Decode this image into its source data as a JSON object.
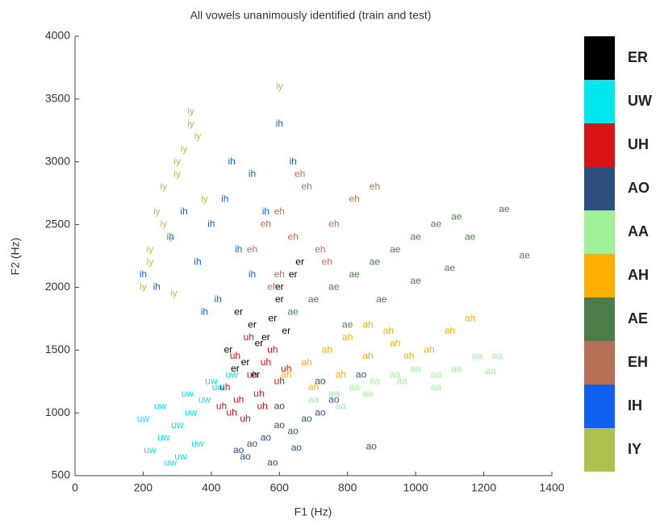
{
  "chart_data": {
    "type": "scatter",
    "title": "All vowels unanimously identified (train and test)",
    "x_label": "F1 (Hz)",
    "y_label": "F2 (Hz)",
    "xlim": [
      0,
      1400
    ],
    "ylim": [
      500,
      4000
    ],
    "xticks": [
      0,
      200,
      400,
      600,
      800,
      1000,
      1200,
      1400
    ],
    "yticks": [
      500,
      1000,
      1500,
      2000,
      2500,
      3000,
      3500,
      4000
    ],
    "legend": "right",
    "series": [
      {
        "name": "ER",
        "marker": "er",
        "color": "#000000",
        "x": [
          480,
          520,
          560,
          600,
          640,
          450,
          500,
          540,
          580,
          620,
          470,
          530,
          600,
          660
        ],
        "y": [
          1800,
          1700,
          1600,
          1900,
          2100,
          1500,
          1400,
          1550,
          1750,
          1650,
          1350,
          1300,
          2000,
          2200
        ]
      },
      {
        "name": "UW",
        "marker": "uw",
        "color": "#00e8ee",
        "x": [
          220,
          260,
          300,
          340,
          380,
          420,
          250,
          310,
          360,
          200,
          280,
          330,
          400,
          460
        ],
        "y": [
          700,
          800,
          900,
          1000,
          1100,
          1200,
          1050,
          650,
          750,
          950,
          600,
          1150,
          1250,
          1300
        ]
      },
      {
        "name": "UH",
        "marker": "uh",
        "color": "#d81414",
        "x": [
          440,
          480,
          520,
          560,
          600,
          460,
          500,
          540,
          580,
          430,
          620,
          510,
          470,
          550
        ],
        "y": [
          1200,
          1100,
          1300,
          1400,
          1250,
          1000,
          950,
          1150,
          1500,
          1050,
          1350,
          1600,
          1450,
          1050
        ]
      },
      {
        "name": "AO",
        "marker": "ao",
        "color": "#2e4e80",
        "x": [
          480,
          520,
          560,
          600,
          640,
          680,
          720,
          760,
          500,
          580,
          650,
          720,
          840,
          600,
          870
        ],
        "y": [
          700,
          750,
          800,
          900,
          850,
          950,
          1000,
          1100,
          650,
          600,
          720,
          1250,
          1300,
          1050,
          730
        ]
      },
      {
        "name": "AA",
        "marker": "aa",
        "color": "#a0f098",
        "x": [
          700,
          760,
          820,
          880,
          940,
          1000,
          1060,
          1120,
          1180,
          1240,
          780,
          860,
          960,
          1060,
          1220
        ],
        "y": [
          1100,
          1150,
          1200,
          1250,
          1300,
          1350,
          1300,
          1350,
          1450,
          1450,
          1050,
          1150,
          1250,
          1200,
          1330
        ]
      },
      {
        "name": "AH",
        "marker": "ah",
        "color": "#ffae00",
        "x": [
          620,
          680,
          740,
          800,
          860,
          920,
          980,
          1040,
          1100,
          1160,
          700,
          780,
          860,
          940
        ],
        "y": [
          1300,
          1400,
          1500,
          1600,
          1700,
          1650,
          1450,
          1500,
          1650,
          1750,
          1200,
          1300,
          1450,
          1550
        ]
      },
      {
        "name": "AE",
        "marker": "ae",
        "color": "#4c7c48",
        "x": [
          640,
          700,
          760,
          820,
          880,
          940,
          1000,
          1060,
          1120,
          1160,
          1260,
          1320,
          800,
          900,
          1000,
          1100
        ],
        "y": [
          1800,
          1900,
          2000,
          2100,
          2200,
          2300,
          2400,
          2500,
          2560,
          2400,
          2620,
          2250,
          1700,
          1900,
          2050,
          2150
        ]
      },
      {
        "name": "EH",
        "marker": "eh",
        "color": "#b87058",
        "x": [
          520,
          560,
          600,
          640,
          680,
          720,
          760,
          820,
          880,
          600,
          660,
          740,
          580
        ],
        "y": [
          2300,
          2500,
          2600,
          2400,
          2800,
          2300,
          2500,
          2700,
          2800,
          2100,
          2900,
          2200,
          2000
        ]
      },
      {
        "name": "IH",
        "marker": "ih",
        "color": "#1060f0",
        "x": [
          200,
          240,
          280,
          320,
          360,
          400,
          440,
          480,
          520,
          560,
          600,
          640,
          380,
          420,
          460,
          520
        ],
        "y": [
          2100,
          2000,
          2400,
          2600,
          2200,
          2500,
          2700,
          2300,
          2100,
          2600,
          3300,
          3000,
          1800,
          1900,
          3000,
          2900
        ]
      },
      {
        "name": "IY",
        "marker": "iy",
        "color": "#b0c050",
        "x": [
          200,
          220,
          240,
          260,
          280,
          300,
          320,
          340,
          360,
          380,
          220,
          260,
          300,
          340,
          600,
          290
        ],
        "y": [
          2000,
          2300,
          2600,
          2800,
          2400,
          2900,
          3100,
          3300,
          3200,
          2700,
          2200,
          2500,
          3000,
          3400,
          3600,
          1950
        ]
      }
    ]
  }
}
